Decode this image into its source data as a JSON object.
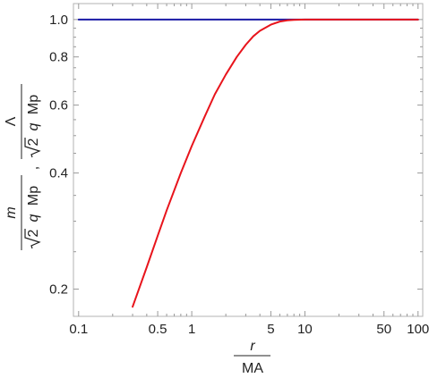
{
  "chart_data": {
    "type": "line",
    "xscale": "log",
    "yscale": "log",
    "xlim": [
      0.09,
      110
    ],
    "ylim": [
      0.17,
      1.1
    ],
    "x_ticks": [
      {
        "value": 0.1,
        "label": "0.1"
      },
      {
        "value": 0.5,
        "label": "0.5"
      },
      {
        "value": 1,
        "label": "1"
      },
      {
        "value": 5,
        "label": "5"
      },
      {
        "value": 10,
        "label": "10"
      },
      {
        "value": 50,
        "label": "50"
      },
      {
        "value": 100,
        "label": "100"
      }
    ],
    "y_ticks": [
      {
        "value": 0.2,
        "label": "0.2"
      },
      {
        "value": 0.4,
        "label": "0.4"
      },
      {
        "value": 0.6,
        "label": "0.6"
      },
      {
        "value": 0.8,
        "label": "0.8"
      },
      {
        "value": 1.0,
        "label": "1.0"
      }
    ],
    "xlabel": {
      "numerator_italic": "r",
      "denominator": "MA"
    },
    "ylabel": {
      "first": {
        "numerator_italic": "m",
        "denominator_prefix": "2",
        "denominator_italic": "q",
        "denominator_suffix": "Mp"
      },
      "separator": ",",
      "second": {
        "numerator": "Λ",
        "denominator_prefix": "2",
        "denominator_italic": "q",
        "denominator_suffix": "Mp"
      }
    },
    "series": [
      {
        "color": "#1a1aa6",
        "x": [
          0.1,
          1,
          10,
          100
        ],
        "y": [
          1.0,
          1.0,
          1.0,
          1.0
        ]
      },
      {
        "color": "#e8141c",
        "x": [
          0.3,
          0.4,
          0.5,
          0.6,
          0.8,
          1.0,
          1.3,
          1.6,
          2.0,
          2.5,
          3.0,
          3.5,
          4.0,
          5.0,
          6.0,
          7.0,
          8.0,
          10,
          15,
          20,
          50,
          100
        ],
        "y": [
          0.18,
          0.228,
          0.275,
          0.32,
          0.4,
          0.47,
          0.56,
          0.64,
          0.72,
          0.8,
          0.86,
          0.905,
          0.935,
          0.97,
          0.988,
          0.995,
          0.998,
          1.0,
          1.0,
          1.0,
          1.0,
          1.0
        ]
      }
    ]
  }
}
